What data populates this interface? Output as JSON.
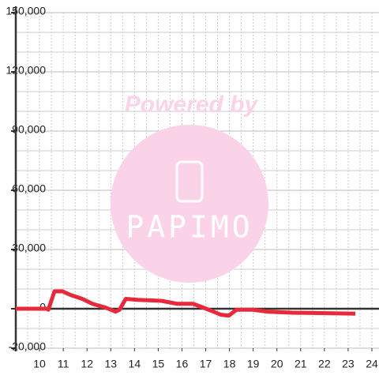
{
  "chart_data": {
    "type": "line",
    "watermark": [
      "Powered by",
      "PAPIMO"
    ],
    "x": [
      9.0,
      10.3,
      10.37,
      10.63,
      10.97,
      11.3,
      11.8,
      12.23,
      12.8,
      13.2,
      13.37,
      13.63,
      14.13,
      15.13,
      15.8,
      16.47,
      16.8,
      17.23,
      17.63,
      17.97,
      18.3,
      18.97,
      19.63,
      20.63,
      23.3
    ],
    "series": [
      {
        "color": "#e8293b",
        "values": [
          0,
          0,
          -500,
          8800,
          8800,
          7000,
          5000,
          2500,
          500,
          -1500,
          -500,
          5000,
          4500,
          4000,
          2500,
          2500,
          1000,
          -1000,
          -3000,
          -3500,
          -500,
          -500,
          -1500,
          -2000,
          -2500
        ]
      }
    ],
    "xlim": [
      9,
      24.3
    ],
    "xticks": [
      10,
      11,
      12,
      13,
      14,
      15,
      16,
      17,
      18,
      19,
      20,
      21,
      22,
      23,
      24
    ],
    "xminorticks": [
      9.5,
      10.5,
      11.5,
      12.5,
      13.5,
      14.5,
      15.5,
      16.5,
      17.5,
      18.5,
      19.5,
      20.5,
      21.5,
      22.5,
      23.5
    ],
    "ylim": [
      -20000,
      150000
    ],
    "yticks": [
      {
        "value": -20000,
        "label": "-20,000"
      },
      0,
      {
        "value": 30000,
        "label": "30,000"
      },
      {
        "value": 60000,
        "label": "60,000"
      },
      {
        "value": 90000,
        "label": "90,000"
      },
      {
        "value": 120000,
        "label": "120,000"
      },
      {
        "value": 150000,
        "label": "150,000"
      }
    ],
    "yminorticks": [
      -10000,
      10000,
      20000,
      40000,
      50000,
      70000,
      80000,
      100000,
      110000,
      130000,
      140000
    ],
    "grid": true
  }
}
